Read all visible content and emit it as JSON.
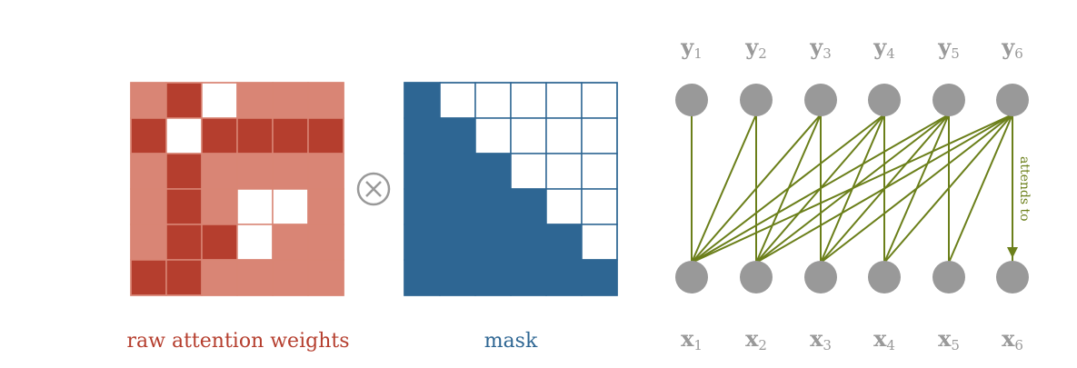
{
  "captions": {
    "weights": "raw attention weights",
    "mask": "mask"
  },
  "operator_symbol": "⊗",
  "colors": {
    "weights_light": "#d98575",
    "weights_dark": "#b53e2e",
    "weights_caption": "#b53e2e",
    "mask_fill": "#2e6693",
    "mask_caption": "#2e6693",
    "node": "#999999",
    "edge": "#6b7f1a",
    "operator": "#999999"
  },
  "weights_matrix": {
    "size": 6,
    "cells": [
      [
        "light",
        "dark",
        "white",
        "light",
        "light",
        "light"
      ],
      [
        "dark",
        "white",
        "dark",
        "dark",
        "dark",
        "dark"
      ],
      [
        "light",
        "dark",
        "light",
        "light",
        "light",
        "light"
      ],
      [
        "light",
        "dark",
        "light",
        "white",
        "white",
        "light"
      ],
      [
        "light",
        "dark",
        "dark",
        "white",
        "light",
        "light"
      ],
      [
        "dark",
        "dark",
        "light",
        "light",
        "light",
        "light"
      ]
    ]
  },
  "mask_matrix": {
    "size": 6,
    "rule": "lower-triangular including diagonal is filled; above diagonal is white"
  },
  "graph": {
    "top_nodes": [
      {
        "base": "y",
        "sub": "1"
      },
      {
        "base": "y",
        "sub": "2"
      },
      {
        "base": "y",
        "sub": "3"
      },
      {
        "base": "y",
        "sub": "4"
      },
      {
        "base": "y",
        "sub": "5"
      },
      {
        "base": "y",
        "sub": "6"
      }
    ],
    "bottom_nodes": [
      {
        "base": "x",
        "sub": "1"
      },
      {
        "base": "x",
        "sub": "2"
      },
      {
        "base": "x",
        "sub": "3"
      },
      {
        "base": "x",
        "sub": "4"
      },
      {
        "base": "x",
        "sub": "5"
      },
      {
        "base": "x",
        "sub": "6"
      }
    ],
    "edge_rule": "each y_i connects to every x_j with j <= i",
    "annotation": "attends to"
  }
}
